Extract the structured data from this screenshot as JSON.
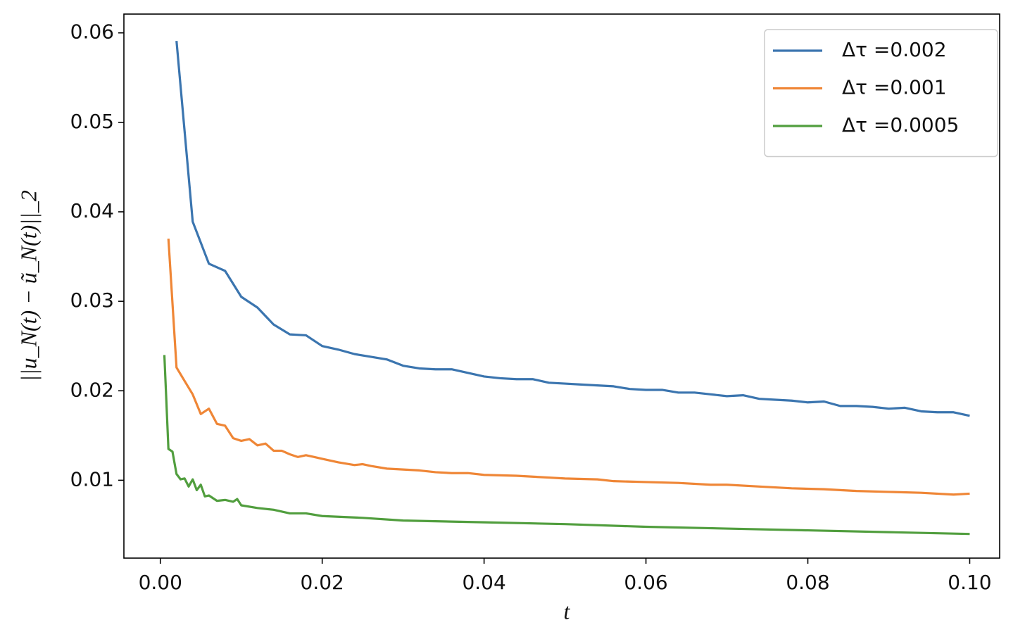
{
  "chart_data": {
    "type": "line",
    "xlabel": "t",
    "ylabel": "||u_N(t) − ũ_N(t)||_2",
    "xlim": [
      -0.0045,
      0.1037
    ],
    "ylim": [
      0.0013,
      0.0621
    ],
    "xticks": [
      {
        "value": 0,
        "label": "0.00"
      },
      0.02,
      0.04,
      0.06,
      0.08,
      {
        "value": 0.1,
        "label": "0.10"
      }
    ],
    "yticks": [
      0.01,
      0.02,
      0.03,
      0.04,
      0.05,
      0.06
    ],
    "legend": "upper right",
    "grid": false,
    "series": [
      {
        "name": "Δτ =0.002",
        "color": "#3b75af",
        "x": [
          0.002,
          0.004,
          0.006,
          0.008,
          0.01,
          0.012,
          0.014,
          0.016,
          0.018,
          0.02,
          0.022,
          0.024,
          0.026,
          0.028,
          0.03,
          0.032,
          0.034,
          0.036,
          0.038,
          0.04,
          0.042,
          0.044,
          0.046,
          0.048,
          0.05,
          0.052,
          0.054,
          0.056,
          0.058,
          0.06,
          0.062,
          0.064,
          0.066,
          0.068,
          0.07,
          0.072,
          0.074,
          0.076,
          0.078,
          0.08,
          0.082,
          0.084,
          0.086,
          0.088,
          0.09,
          0.092,
          0.094,
          0.096,
          0.098,
          0.1
        ],
        "values": [
          0.0591,
          0.0389,
          0.0342,
          0.0334,
          0.0305,
          0.0293,
          0.0274,
          0.0263,
          0.0262,
          0.025,
          0.0246,
          0.0241,
          0.0238,
          0.0235,
          0.0228,
          0.0225,
          0.0224,
          0.0224,
          0.022,
          0.0216,
          0.0214,
          0.0213,
          0.0213,
          0.0209,
          0.0208,
          0.0207,
          0.0206,
          0.0205,
          0.0202,
          0.0201,
          0.0201,
          0.0198,
          0.0198,
          0.0196,
          0.0194,
          0.0195,
          0.0191,
          0.019,
          0.0189,
          0.0187,
          0.0188,
          0.0183,
          0.0183,
          0.0182,
          0.018,
          0.0181,
          0.0177,
          0.0176,
          0.0176,
          0.0172
        ]
      },
      {
        "name": "Δτ =0.001",
        "color": "#ef8636",
        "x": [
          0.001,
          0.002,
          0.003,
          0.004,
          0.005,
          0.006,
          0.007,
          0.008,
          0.009,
          0.01,
          0.011,
          0.012,
          0.013,
          0.014,
          0.015,
          0.016,
          0.017,
          0.018,
          0.019,
          0.02,
          0.022,
          0.024,
          0.025,
          0.026,
          0.028,
          0.03,
          0.032,
          0.034,
          0.036,
          0.038,
          0.04,
          0.044,
          0.048,
          0.05,
          0.054,
          0.056,
          0.06,
          0.064,
          0.068,
          0.07,
          0.074,
          0.078,
          0.082,
          0.086,
          0.09,
          0.094,
          0.098,
          0.1
        ],
        "values": [
          0.037,
          0.0226,
          0.0211,
          0.0196,
          0.0174,
          0.018,
          0.0163,
          0.0161,
          0.0147,
          0.0144,
          0.0146,
          0.0139,
          0.0141,
          0.0133,
          0.0133,
          0.0129,
          0.0126,
          0.0128,
          0.0126,
          0.0124,
          0.012,
          0.0117,
          0.0118,
          0.0116,
          0.0113,
          0.0112,
          0.0111,
          0.0109,
          0.0108,
          0.0108,
          0.0106,
          0.0105,
          0.0103,
          0.0102,
          0.0101,
          0.0099,
          0.0098,
          0.0097,
          0.0095,
          0.0095,
          0.0093,
          0.0091,
          0.009,
          0.0088,
          0.0087,
          0.0086,
          0.0084,
          0.0085
        ]
      },
      {
        "name": "Δτ =0.0005",
        "color": "#519e3e",
        "x": [
          0.0005,
          0.001,
          0.0015,
          0.002,
          0.0025,
          0.003,
          0.0035,
          0.004,
          0.0045,
          0.005,
          0.0055,
          0.006,
          0.007,
          0.008,
          0.009,
          0.0095,
          0.01,
          0.012,
          0.014,
          0.016,
          0.018,
          0.02,
          0.025,
          0.03,
          0.035,
          0.04,
          0.05,
          0.06,
          0.07,
          0.08,
          0.09,
          0.1
        ],
        "values": [
          0.024,
          0.0135,
          0.0132,
          0.0107,
          0.0101,
          0.0102,
          0.0093,
          0.0101,
          0.0089,
          0.0095,
          0.0082,
          0.0083,
          0.0077,
          0.0078,
          0.0076,
          0.0079,
          0.0072,
          0.0069,
          0.0067,
          0.0063,
          0.0063,
          0.006,
          0.0058,
          0.0055,
          0.0054,
          0.0053,
          0.0051,
          0.0048,
          0.0046,
          0.0044,
          0.0042,
          0.004
        ]
      }
    ]
  }
}
